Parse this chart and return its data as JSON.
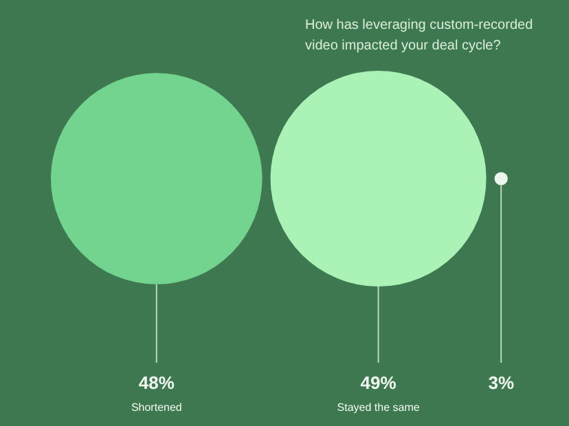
{
  "chart_data": {
    "type": "other",
    "title": "How has leveraging custom-recorded video impacted your deal cycle?",
    "categories": [
      "Shortened",
      "Stayed the same",
      null
    ],
    "values": [
      48,
      49,
      3
    ],
    "value_labels": [
      "48%",
      "49%",
      "3%"
    ],
    "colors": [
      "#72d48e",
      "#aaf2b6",
      "#eef7ee"
    ]
  }
}
